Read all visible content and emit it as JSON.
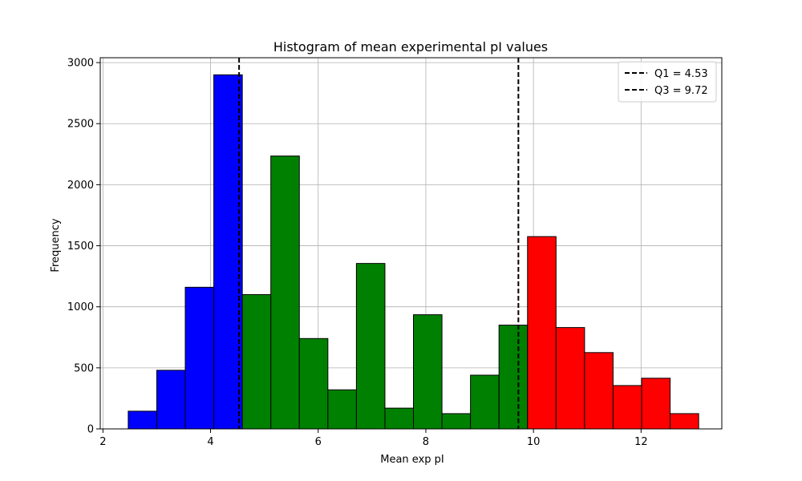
{
  "chart_data": {
    "type": "bar",
    "title": "Histogram of mean experimental pI values",
    "xlabel": "Mean exp pI",
    "ylabel": "Frequency",
    "xlim": [
      1.95,
      13.5
    ],
    "ylim": [
      0,
      3040
    ],
    "xticks": [
      2,
      4,
      6,
      8,
      10,
      12
    ],
    "yticks": [
      0,
      500,
      1000,
      1500,
      2000,
      2500,
      3000
    ],
    "grid": true,
    "legend_position": "top-right",
    "bin_edges": [
      2.47,
      3.0,
      3.53,
      4.06,
      4.59,
      5.12,
      5.65,
      6.18,
      6.71,
      7.24,
      7.77,
      8.3,
      8.83,
      9.36,
      9.89,
      10.42,
      10.95,
      11.48,
      12.01,
      12.54,
      13.07
    ],
    "values": [
      145,
      480,
      1160,
      2900,
      1100,
      2235,
      740,
      320,
      1355,
      170,
      935,
      125,
      440,
      850,
      1575,
      830,
      625,
      355,
      415,
      125
    ],
    "bar_colors": [
      "#0000ff",
      "#0000ff",
      "#0000ff",
      "#0000ff",
      "#008000",
      "#008000",
      "#008000",
      "#008000",
      "#008000",
      "#008000",
      "#008000",
      "#008000",
      "#008000",
      "#008000",
      "#ff0000",
      "#ff0000",
      "#ff0000",
      "#ff0000",
      "#ff0000",
      "#ff0000"
    ],
    "edge_color": "#000000",
    "reference_lines": [
      {
        "x": 4.53,
        "label": "Q1 = 4.53",
        "style": "dashed",
        "color": "#000000"
      },
      {
        "x": 9.72,
        "label": "Q3 = 9.72",
        "style": "dashed",
        "color": "#000000"
      }
    ]
  }
}
